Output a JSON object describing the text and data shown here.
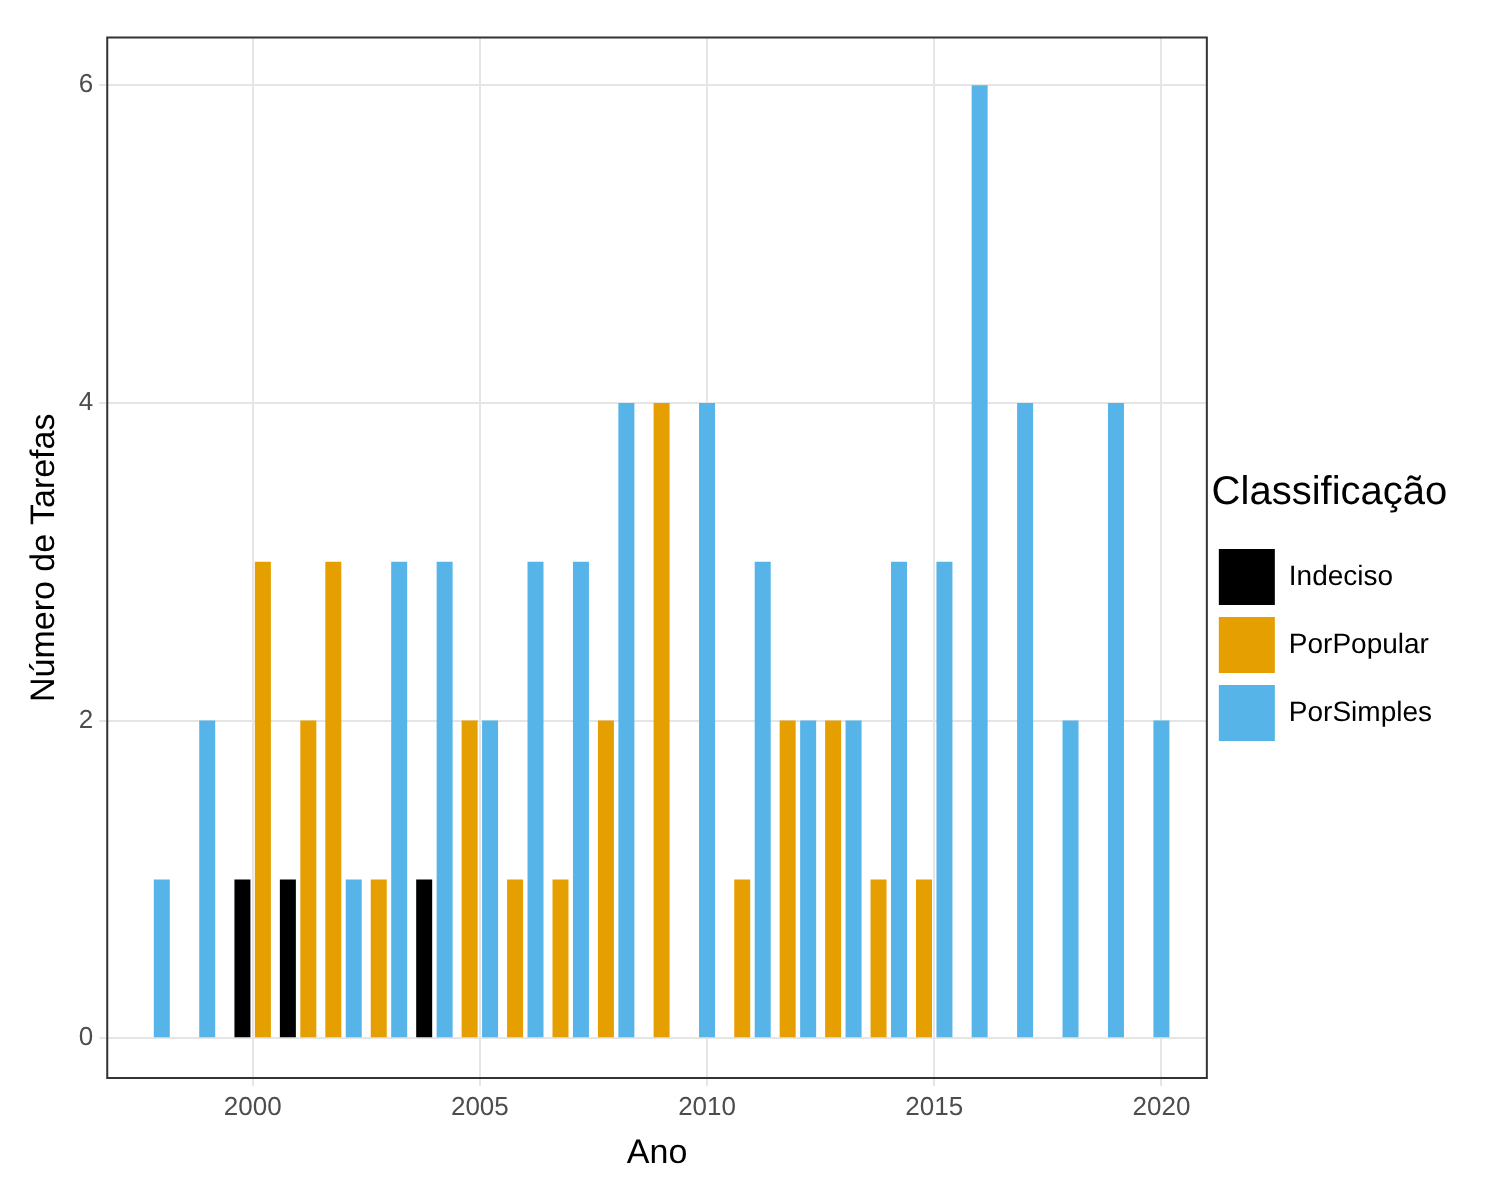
{
  "chart_data": {
    "type": "bar",
    "xlabel": "Ano",
    "ylabel": "Número de Tarefas",
    "legend_title": "Classificação",
    "x": [
      1998,
      1999,
      2000,
      2001,
      2002,
      2003,
      2004,
      2005,
      2006,
      2007,
      2008,
      2009,
      2010,
      2011,
      2012,
      2013,
      2014,
      2015,
      2016,
      2017,
      2018,
      2019,
      2020
    ],
    "series": [
      {
        "name": "Indeciso",
        "color": "#000000",
        "values": [
          null,
          null,
          1,
          1,
          null,
          null,
          1,
          null,
          null,
          null,
          null,
          null,
          null,
          null,
          null,
          null,
          null,
          null,
          null,
          null,
          null,
          null,
          null
        ]
      },
      {
        "name": "PorPopular",
        "color": "#e69f00",
        "values": [
          null,
          null,
          3,
          2,
          3,
          1,
          null,
          2,
          1,
          1,
          2,
          4,
          null,
          1,
          2,
          2,
          1,
          1,
          null,
          null,
          null,
          null,
          null
        ]
      },
      {
        "name": "PorSimples",
        "color": "#56b4e9",
        "values": [
          1,
          2,
          null,
          null,
          1,
          3,
          3,
          2,
          3,
          3,
          4,
          null,
          4,
          3,
          2,
          2,
          3,
          3,
          6,
          4,
          2,
          4,
          2
        ]
      }
    ],
    "xlim": [
      1996.8,
      2021
    ],
    "xticks": [
      2000,
      2005,
      2010,
      2015,
      2020
    ],
    "ylim": [
      -0.25,
      6.3
    ],
    "yticks": [
      0,
      2,
      4,
      6
    ],
    "grid": true,
    "legend": "right"
  }
}
